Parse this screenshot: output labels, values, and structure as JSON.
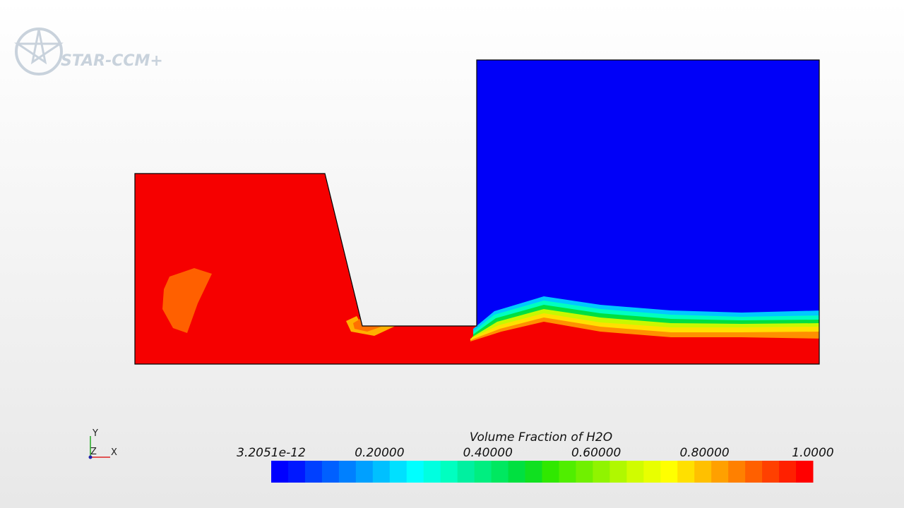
{
  "logo": "STAR-CCM+",
  "triad": {
    "y": "Y",
    "z": "Z",
    "x": "X"
  },
  "colorbar": {
    "title": "Volume Fraction of H2O",
    "range": [
      3.2051e-12,
      1
    ],
    "ticks": [
      3.2051e-12,
      {
        "value": 0.2,
        "label": "0.20000"
      },
      {
        "value": 0.4,
        "label": "0.40000"
      },
      {
        "value": 0.6,
        "label": "0.60000"
      },
      {
        "value": 0.8,
        "label": "0.80000"
      },
      {
        "value": 1,
        "label": "1.0000"
      }
    ],
    "colors": [
      "#0000ff",
      "#0018ff",
      "#0040ff",
      "#0060ff",
      "#0080ff",
      "#00a0ff",
      "#00c0ff",
      "#00e0ff",
      "#00ffff",
      "#00ffe0",
      "#00ffc0",
      "#00f0a0",
      "#00ee80",
      "#00e860",
      "#00e040",
      "#10e020",
      "#30e800",
      "#50ee00",
      "#70f000",
      "#90f400",
      "#b0f800",
      "#d0fc00",
      "#e8ff00",
      "#ffff00",
      "#ffe000",
      "#ffc000",
      "#ffa000",
      "#ff8000",
      "#ff6000",
      "#ff4000",
      "#ff2000",
      "#ff0000"
    ]
  }
}
